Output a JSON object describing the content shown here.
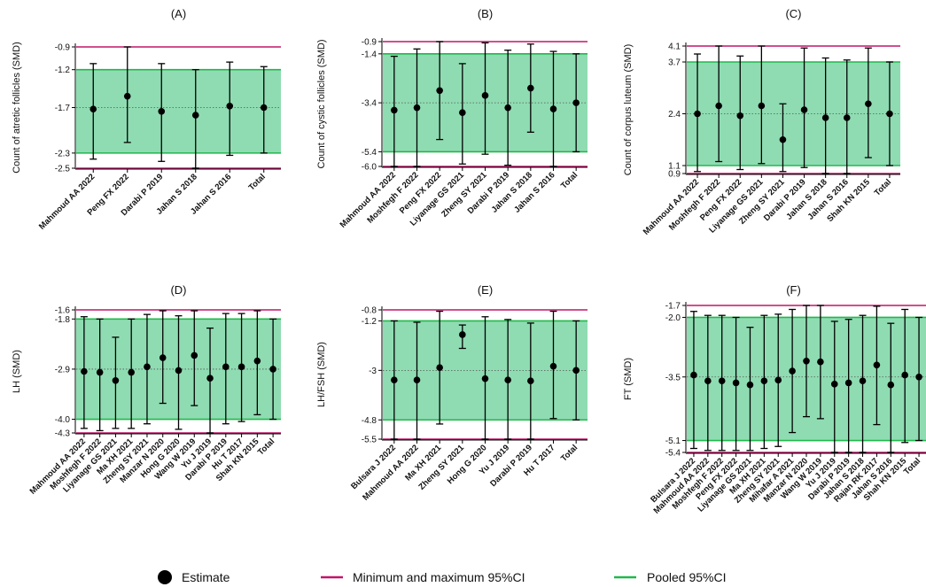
{
  "colors": {
    "pooled_band_fill": "#8fdcb2",
    "pooled_line": "#20b84d",
    "minmax_line": "#c0166a",
    "estimate_marker": "#000000",
    "axis": "#000000"
  },
  "legend": {
    "estimate_label": "Estimate",
    "minmax_label": "Minimum and maximum 95%CI",
    "pooled_label": "Pooled 95%CI"
  },
  "chart_data": [
    {
      "type": "scatter",
      "panel_title": "(A)",
      "ylabel": "Count of atretic follicles (SMD)",
      "yticks": [
        -0.9,
        -1.2,
        -1.7,
        -2.3,
        -2.5
      ],
      "ytick_labels": [
        "-0.9",
        "-1.2",
        "-1.7",
        "-2.3",
        "-2.5"
      ],
      "ylim": [
        -2.5,
        -0.9
      ],
      "minmax_ci": [
        -2.5,
        -0.9
      ],
      "pooled_ci": [
        -2.3,
        -1.2
      ],
      "dotted_reference": -1.7,
      "categories": [
        "Mahmoud AA 2022",
        "Peng FX 2022",
        "Darabi P 2019",
        "Jahan S 2018",
        "Jahan S 2016",
        "Total"
      ],
      "series": [
        {
          "estimates": [
            -1.72,
            -1.55,
            -1.75,
            -1.8,
            -1.68,
            -1.7
          ],
          "lower": [
            -2.38,
            -2.16,
            -2.41,
            -2.5,
            -2.33,
            -2.3
          ],
          "upper": [
            -1.12,
            -0.9,
            -1.12,
            -1.2,
            -1.1,
            -1.16
          ]
        }
      ]
    },
    {
      "type": "scatter",
      "panel_title": "(B)",
      "ylabel": "Count of cystic follicles (SMD)",
      "yticks": [
        -0.9,
        -1.4,
        -3.4,
        -5.4,
        -6.0
      ],
      "ytick_labels": [
        "-0.9",
        "-1.4",
        "-3.4",
        "-5.4",
        "-6.0"
      ],
      "ylim": [
        -6.0,
        -0.9
      ],
      "minmax_ci": [
        -6.0,
        -0.9
      ],
      "pooled_ci": [
        -5.4,
        -1.4
      ],
      "dotted_reference": -3.4,
      "categories": [
        "Mahmoud AA 2022",
        "Moshfegh F 2022",
        "Peng FX 2022",
        "Liyanage GS 2021",
        "Zheng SY 2021",
        "Darabi P 2019",
        "Jahan S 2018",
        "Jahan S 2016",
        "Total"
      ],
      "series": [
        {
          "estimates": [
            -3.7,
            -3.6,
            -2.9,
            -3.8,
            -3.1,
            -3.6,
            -2.8,
            -3.65,
            -3.4
          ],
          "lower": [
            -6.0,
            -6.0,
            -4.9,
            -5.9,
            -5.5,
            -5.95,
            -4.6,
            -6.0,
            -5.4
          ],
          "upper": [
            -1.5,
            -1.2,
            -0.9,
            -1.8,
            -0.95,
            -1.25,
            -1.0,
            -1.3,
            -1.4
          ]
        }
      ]
    },
    {
      "type": "scatter",
      "panel_title": "(C)",
      "ylabel": "Count of corpus luteum (SMD)",
      "yticks": [
        4.1,
        3.7,
        2.4,
        1.1,
        0.9
      ],
      "ytick_labels": [
        "4.1",
        "3.7",
        "2.4",
        "1.1",
        "0.9"
      ],
      "ylim": [
        0.9,
        4.1
      ],
      "minmax_ci": [
        0.9,
        4.1
      ],
      "pooled_ci": [
        1.1,
        3.7
      ],
      "dotted_reference": 2.4,
      "categories": [
        "Mahmoud AA 2022",
        "Moshfegh F 2022",
        "Peng FX 2022",
        "Liyanage GS 2021",
        "Zheng SY 2021",
        "Darabi P 2019",
        "Jahan S 2018",
        "Jahan S 2016",
        "Shah KN 2015",
        "Total"
      ],
      "series": [
        {
          "estimates": [
            2.4,
            2.6,
            2.35,
            2.6,
            1.75,
            2.5,
            2.3,
            2.3,
            2.65,
            2.4
          ],
          "lower": [
            0.95,
            1.2,
            1.0,
            1.15,
            0.95,
            1.05,
            0.9,
            0.9,
            1.3,
            1.1
          ],
          "upper": [
            3.9,
            4.1,
            3.85,
            4.1,
            2.65,
            4.05,
            3.8,
            3.75,
            4.05,
            3.7
          ]
        }
      ]
    },
    {
      "type": "scatter",
      "panel_title": "(D)",
      "ylabel": "LH (SMD)",
      "yticks": [
        -1.6,
        -1.8,
        -2.9,
        -4.0,
        -4.3
      ],
      "ytick_labels": [
        "-1.6",
        "-1.8",
        "-2.9",
        "-4.0",
        "-4.3"
      ],
      "ylim": [
        -4.3,
        -1.6
      ],
      "minmax_ci": [
        -4.3,
        -1.6
      ],
      "pooled_ci": [
        -4.0,
        -1.8
      ],
      "dotted_reference": -2.9,
      "categories": [
        "Mahmoud AA 2022",
        "Moshfegh F 2022",
        "Liyanage GS 2021",
        "Ma XH 2021",
        "Zheng SY 2021",
        "Manzar N 2020",
        "Hong G 2020",
        "Wang W 2019",
        "Yu J 2019",
        "Darabi P 2019",
        "Hu T 2017",
        "Shah KN 2015",
        "Total"
      ],
      "series": [
        {
          "estimates": [
            -2.95,
            -2.97,
            -3.15,
            -2.97,
            -2.85,
            -2.65,
            -2.93,
            -2.6,
            -3.1,
            -2.85,
            -2.85,
            -2.72,
            -2.9
          ],
          "lower": [
            -4.2,
            -4.25,
            -4.2,
            -4.2,
            -4.1,
            -3.65,
            -4.22,
            -3.7,
            -4.3,
            -4.1,
            -4.05,
            -3.9,
            -4.0
          ],
          "upper": [
            -1.75,
            -1.8,
            -2.2,
            -1.8,
            -1.7,
            -1.62,
            -1.73,
            -1.62,
            -2.0,
            -1.68,
            -1.68,
            -1.62,
            -1.8
          ]
        }
      ]
    },
    {
      "type": "scatter",
      "panel_title": "(E)",
      "ylabel": "LH/FSH (SMD)",
      "yticks": [
        -0.8,
        -1.2,
        -3,
        -4.8,
        -5.5
      ],
      "ytick_labels": [
        "-0.8",
        "-1.2",
        "-3",
        "-4.8",
        "-5.5"
      ],
      "ylim": [
        -5.5,
        -0.8
      ],
      "minmax_ci": [
        -5.5,
        -0.8
      ],
      "pooled_ci": [
        -4.8,
        -1.2
      ],
      "dotted_reference": -3,
      "categories": [
        "Bulsara J 2022",
        "Mahmoud AA 2022",
        "Ma XH 2021",
        "Zheng SY 2021",
        "Hong G 2020",
        "Yu J 2019",
        "Darabi P 2019",
        "Hu T 2017",
        "Total"
      ],
      "series": [
        {
          "estimates": [
            -3.35,
            -3.35,
            -2.9,
            -1.7,
            -3.3,
            -3.35,
            -3.38,
            -2.85,
            -3.0
          ],
          "lower": [
            -5.5,
            -5.5,
            -4.95,
            -2.2,
            -5.5,
            -5.5,
            -5.5,
            -4.75,
            -4.8
          ],
          "upper": [
            -1.2,
            -1.25,
            -0.85,
            -1.35,
            -1.05,
            -1.15,
            -1.28,
            -0.85,
            -1.2
          ]
        }
      ]
    },
    {
      "type": "scatter",
      "panel_title": "(F)",
      "ylabel": "FT (SMD)",
      "yticks": [
        -1.7,
        -2.0,
        -3.5,
        -5.1,
        -5.4
      ],
      "ytick_labels": [
        "-1.7",
        "-2.0",
        "-3.5",
        "-5.1",
        "-5.4"
      ],
      "ylim": [
        -5.4,
        -1.7
      ],
      "minmax_ci": [
        -5.4,
        -1.7
      ],
      "pooled_ci": [
        -5.1,
        -2.0
      ],
      "dotted_reference": -3.5,
      "categories": [
        "Bulsara J 2022",
        "Mahmoud AA 2022",
        "Moshfegh F 2022",
        "Peng FX 2022",
        "Liyanage GS 2021",
        "Ma XH 2021",
        "Zheng SY 2021",
        "Mihafar A 2021",
        "Manzar N 2020",
        "Wang W 2019",
        "Yu J 2019",
        "Darabi P 2019",
        "Jahan S 2018",
        "Rajan RK 2017",
        "Jahan S 2016",
        "Shah KN 2015",
        "Total"
      ],
      "series": [
        {
          "estimates": [
            -3.45,
            -3.6,
            -3.6,
            -3.65,
            -3.7,
            -3.6,
            -3.58,
            -3.35,
            -3.1,
            -3.12,
            -3.68,
            -3.65,
            -3.6,
            -3.2,
            -3.7,
            -3.45,
            -3.5
          ],
          "lower": [
            -5.3,
            -5.35,
            -5.35,
            -5.35,
            -5.35,
            -5.3,
            -5.25,
            -4.9,
            -4.5,
            -4.55,
            -5.4,
            -5.4,
            -5.4,
            -4.7,
            -5.4,
            -5.15,
            -5.1
          ],
          "upper": [
            -1.85,
            -1.95,
            -1.95,
            -2.0,
            -2.25,
            -1.95,
            -1.92,
            -1.8,
            -1.7,
            -1.7,
            -2.1,
            -2.05,
            -1.95,
            -1.72,
            -2.15,
            -1.8,
            -2.0
          ]
        }
      ]
    }
  ]
}
